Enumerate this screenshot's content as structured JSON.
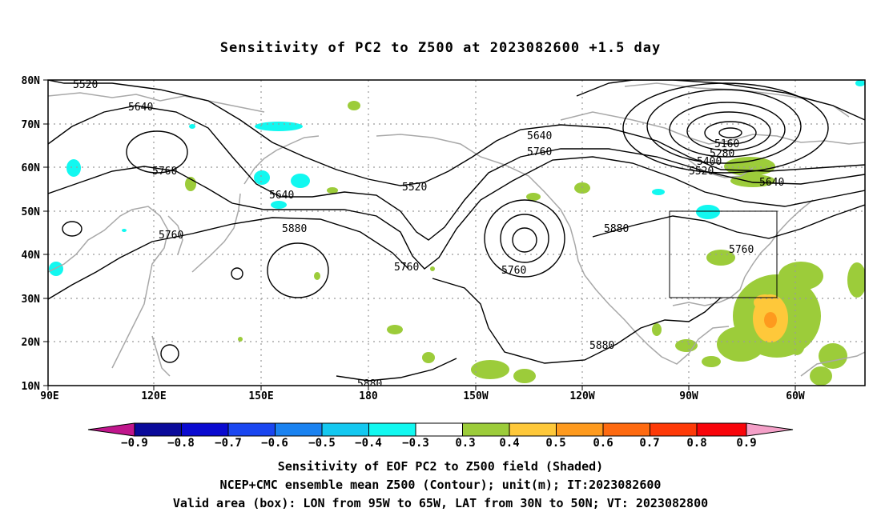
{
  "title": "Sensitivity of PC2 to Z500 at 2023082600 +1.5 day",
  "map": {
    "lat_labels": [
      "80N",
      "70N",
      "60N",
      "50N",
      "40N",
      "30N",
      "20N",
      "10N"
    ],
    "lon_labels": [
      "90E",
      "120E",
      "150E",
      "180",
      "150W",
      "120W",
      "90W",
      "60W"
    ],
    "lon_range": [
      90,
      325
    ],
    "lat_range": [
      10,
      80
    ],
    "valid_box": {
      "lon_from": "95W",
      "lon_to": "65W",
      "lat_from": "30N",
      "lat_to": "50N"
    },
    "contour_labels": [
      "5520",
      "5640",
      "5760",
      "5640",
      "5880",
      "5520",
      "5760",
      "5640",
      "5760",
      "5760",
      "5880",
      "5880",
      "5880",
      "5160",
      "5280",
      "5400",
      "5520",
      "5640",
      "5760"
    ],
    "colors": {
      "contour": "#000000",
      "coastline": "#a8a8a8",
      "grid": "#9a9a9a",
      "box": "#000000"
    }
  },
  "colorbar": {
    "labels": [
      "−0.9",
      "−0.8",
      "−0.7",
      "−0.6",
      "−0.5",
      "−0.4",
      "−0.3",
      "0.3",
      "0.4",
      "0.5",
      "0.6",
      "0.7",
      "0.8",
      "0.9"
    ],
    "colors": [
      "#c0168c",
      "#0a0a9a",
      "#0a0ad0",
      "#1a46f0",
      "#1a82f0",
      "#14c8f0",
      "#12f8f0",
      "#ffffff",
      "#9ccc3a",
      "#fec83a",
      "#fe9a1e",
      "#fe6a10",
      "#fe3a08",
      "#f8040a",
      "#f4a0c8"
    ]
  },
  "footer": {
    "line1": "Sensitivity of EOF PC2 to Z500 field (Shaded)",
    "line2": "NCEP+CMC ensemble mean Z500 (Contour); unit(m); IT:2023082600",
    "line3": "Valid area (box): LON from 95W to 65W, LAT from 30N to 50N; VT: 2023082800"
  }
}
